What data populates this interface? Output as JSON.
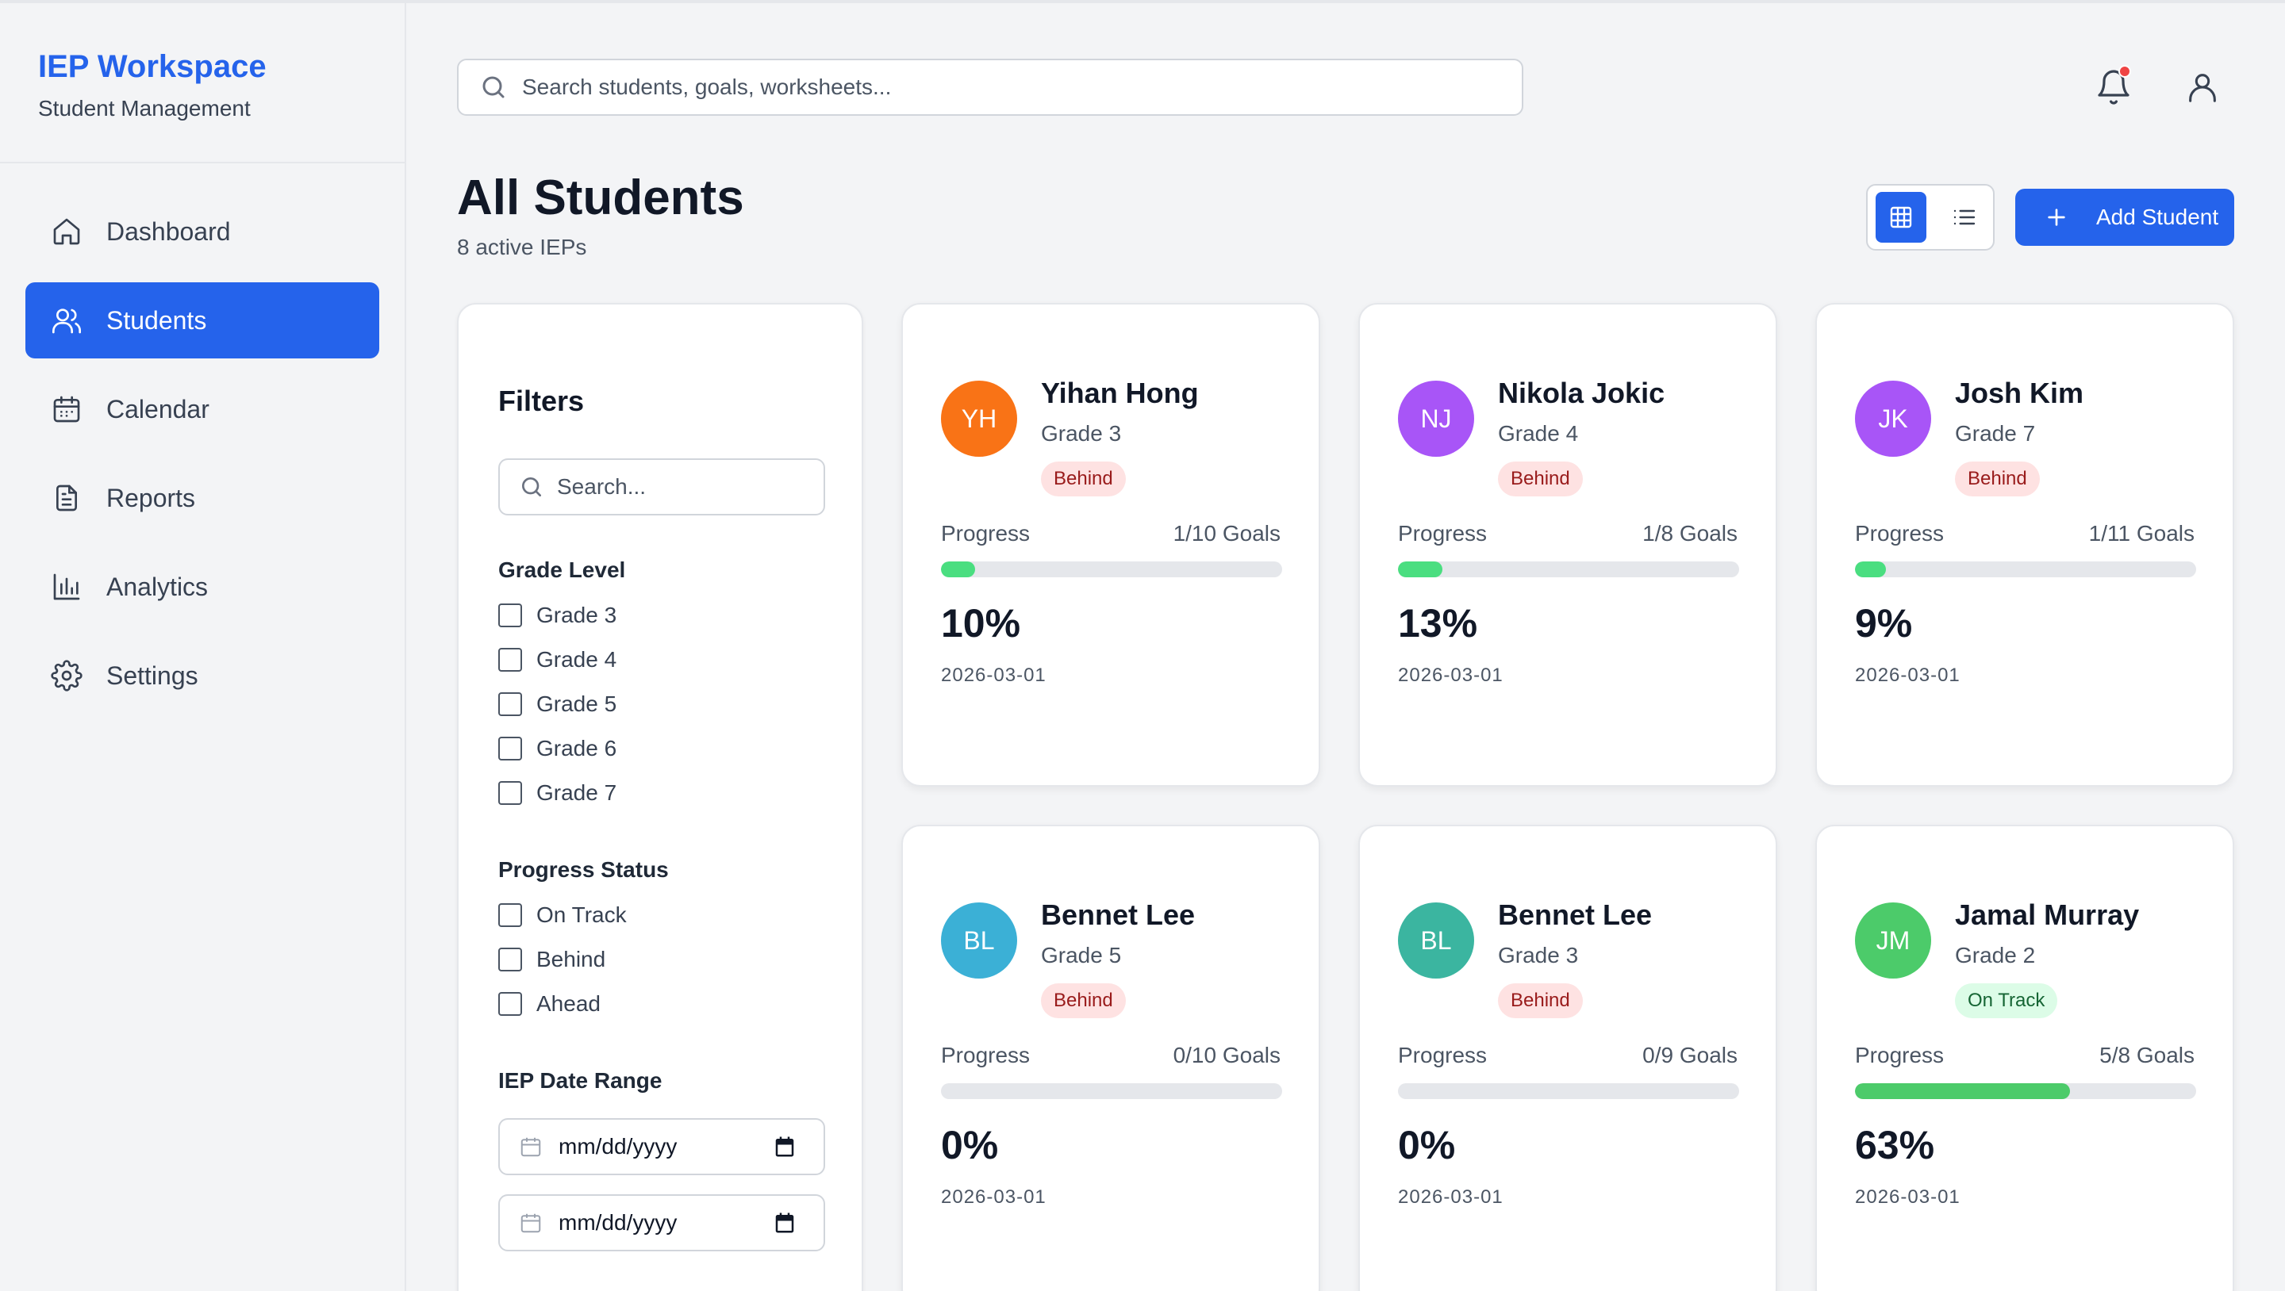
{
  "app": {
    "title": "IEP Workspace",
    "subtitle": "Student Management"
  },
  "nav": [
    {
      "label": "Dashboard",
      "icon": "home-icon",
      "active": false
    },
    {
      "label": "Students",
      "icon": "users-icon",
      "active": true
    },
    {
      "label": "Calendar",
      "icon": "calendar-icon",
      "active": false
    },
    {
      "label": "Reports",
      "icon": "document-icon",
      "active": false
    },
    {
      "label": "Analytics",
      "icon": "bar-chart-icon",
      "active": false
    },
    {
      "label": "Settings",
      "icon": "gear-icon",
      "active": false
    }
  ],
  "header": {
    "search_placeholder": "Search students, goals, worksheets...",
    "has_notification": true
  },
  "page": {
    "title": "All Students",
    "subtitle": "8 active IEPs",
    "add_button": "Add Student",
    "view_mode": "grid"
  },
  "filters": {
    "title": "Filters",
    "search_placeholder": "Search...",
    "grade_title": "Grade Level",
    "grades": [
      "Grade 3",
      "Grade 4",
      "Grade 5",
      "Grade 6",
      "Grade 7"
    ],
    "status_title": "Progress Status",
    "statuses": [
      "On Track",
      "Behind",
      "Ahead"
    ],
    "date_title": "IEP Date Range",
    "date_from": "mm/dd/yyyy",
    "date_to": "mm/dd/yyyy"
  },
  "colors": {
    "accent": "#2563eb",
    "progress": "#4ade80",
    "behind_bg": "#fee2e2",
    "ontrack_bg": "#dcfce7"
  },
  "students": [
    {
      "initials": "YH",
      "name": "Yihan Hong",
      "grade": "Grade 3",
      "status": "Behind",
      "status_key": "behind",
      "progress_label": "Progress",
      "goals": "1/10 Goals",
      "percent": "10%",
      "progress": 0.1,
      "date": "2026-03-01",
      "color": "#f97316"
    },
    {
      "initials": "NJ",
      "name": "Nikola Jokic",
      "grade": "Grade 4",
      "status": "Behind",
      "status_key": "behind",
      "progress_label": "Progress",
      "goals": "1/8 Goals",
      "percent": "13%",
      "progress": 0.13,
      "date": "2026-03-01",
      "color": "#a855f7"
    },
    {
      "initials": "JK",
      "name": "Josh Kim",
      "grade": "Grade 7",
      "status": "Behind",
      "status_key": "behind",
      "progress_label": "Progress",
      "goals": "1/11 Goals",
      "percent": "9%",
      "progress": 0.09,
      "date": "2026-03-01",
      "color": "#a855f7"
    },
    {
      "initials": "BL",
      "name": "Bennet Lee",
      "grade": "Grade 5",
      "status": "Behind",
      "status_key": "behind",
      "progress_label": "Progress",
      "goals": "0/10 Goals",
      "percent": "0%",
      "progress": 0.0,
      "date": "2026-03-01",
      "color": "#3bb0d6"
    },
    {
      "initials": "BL",
      "name": "Bennet Lee",
      "grade": "Grade 3",
      "status": "Behind",
      "status_key": "behind",
      "progress_label": "Progress",
      "goals": "0/9 Goals",
      "percent": "0%",
      "progress": 0.0,
      "date": "2026-03-01",
      "color": "#3bb5a0"
    },
    {
      "initials": "JM",
      "name": "Jamal Murray",
      "grade": "Grade 2",
      "status": "On Track",
      "status_key": "ontrack",
      "progress_label": "Progress",
      "goals": "5/8 Goals",
      "percent": "63%",
      "progress": 0.63,
      "date": "2026-03-01",
      "color": "#4ccb6a"
    }
  ]
}
